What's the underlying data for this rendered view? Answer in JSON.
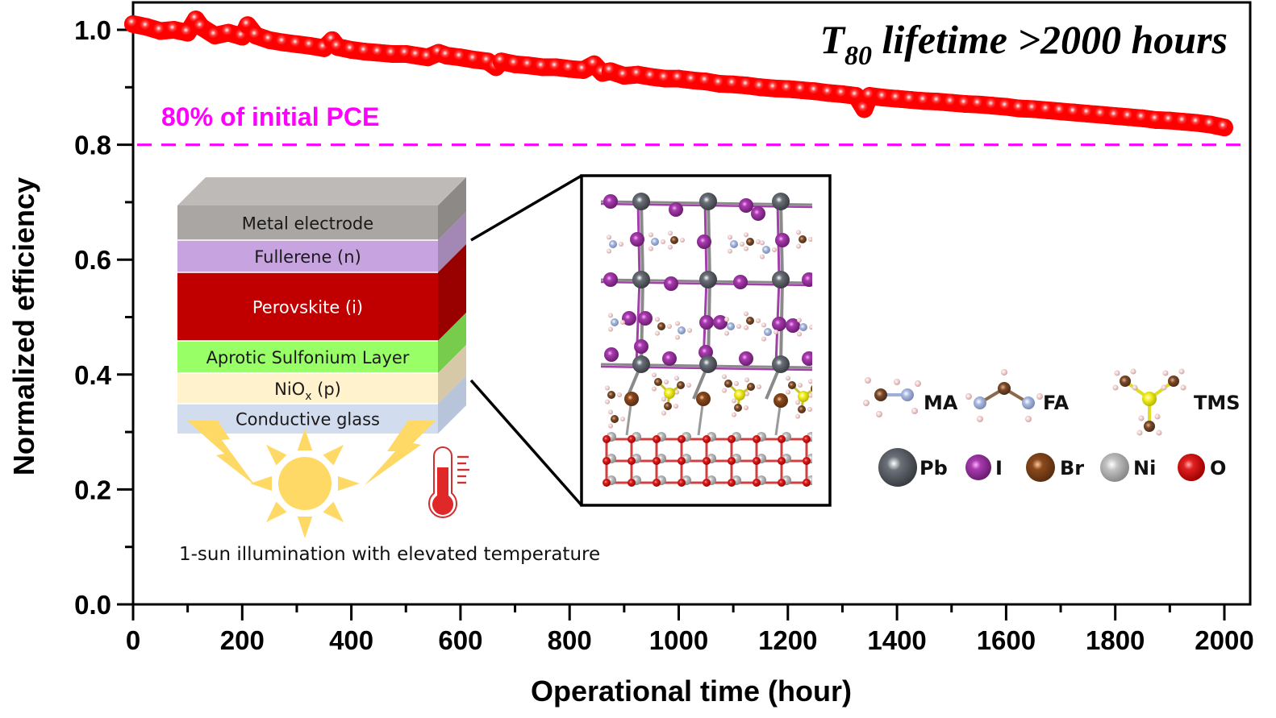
{
  "chart_data": {
    "type": "scatter",
    "title": "",
    "xlabel": "Operational time (hour)",
    "ylabel": "Normalized efficiency",
    "xlim": [
      0,
      2000
    ],
    "ylim": [
      0.0,
      1.0
    ],
    "x_ticks": [
      "0",
      "200",
      "400",
      "600",
      "800",
      "1000",
      "1200",
      "1400",
      "1600",
      "1800",
      "2000"
    ],
    "x_tick_values": [
      0,
      200,
      400,
      600,
      800,
      1000,
      1200,
      1400,
      1600,
      1800,
      2000
    ],
    "y_ticks": [
      "0.0",
      "0.2",
      "0.4",
      "0.6",
      "0.8",
      "1.0"
    ],
    "y_tick_values": [
      0.0,
      0.2,
      0.4,
      0.6,
      0.8,
      1.0
    ],
    "grid": false,
    "series": [
      {
        "name": "Normalized efficiency",
        "color": "#ff0000",
        "x": [
          0,
          25,
          50,
          75,
          100,
          115,
          125,
          150,
          175,
          200,
          210,
          225,
          250,
          275,
          300,
          325,
          350,
          365,
          375,
          400,
          425,
          450,
          475,
          500,
          520,
          540,
          560,
          575,
          600,
          625,
          650,
          665,
          675,
          700,
          725,
          750,
          775,
          800,
          825,
          845,
          860,
          875,
          900,
          925,
          950,
          975,
          1000,
          1025,
          1050,
          1075,
          1100,
          1125,
          1150,
          1175,
          1200,
          1225,
          1250,
          1275,
          1300,
          1325,
          1340,
          1350,
          1375,
          1400,
          1425,
          1450,
          1475,
          1500,
          1525,
          1550,
          1575,
          1600,
          1625,
          1650,
          1675,
          1700,
          1725,
          1750,
          1775,
          1800,
          1825,
          1850,
          1875,
          1900,
          1925,
          1950,
          1975,
          2000
        ],
        "y": [
          1.01,
          1.005,
          0.998,
          1.0,
          0.995,
          1.018,
          1.005,
          0.99,
          0.995,
          0.988,
          1.008,
          0.99,
          0.982,
          0.978,
          0.975,
          0.972,
          0.968,
          0.982,
          0.97,
          0.965,
          0.962,
          0.96,
          0.958,
          0.958,
          0.955,
          0.952,
          0.96,
          0.955,
          0.952,
          0.948,
          0.945,
          0.935,
          0.945,
          0.94,
          0.938,
          0.935,
          0.935,
          0.932,
          0.93,
          0.94,
          0.925,
          0.928,
          0.92,
          0.922,
          0.918,
          0.915,
          0.915,
          0.912,
          0.91,
          0.906,
          0.905,
          0.903,
          0.9,
          0.898,
          0.897,
          0.895,
          0.893,
          0.89,
          0.888,
          0.885,
          0.862,
          0.885,
          0.882,
          0.88,
          0.878,
          0.876,
          0.875,
          0.873,
          0.871,
          0.87,
          0.868,
          0.866,
          0.863,
          0.862,
          0.86,
          0.858,
          0.856,
          0.854,
          0.852,
          0.85,
          0.848,
          0.846,
          0.843,
          0.842,
          0.84,
          0.838,
          0.835,
          0.83
        ]
      }
    ],
    "reference_line": {
      "y": 0.8,
      "style": "dashed",
      "color": "#ff00ff",
      "label": "80% of initial PCE"
    },
    "annotations": {
      "t80_prefix": "T",
      "t80_subscript": "80",
      "t80_suffix": " lifetime >2000 hours"
    }
  },
  "inset": {
    "device_layers": [
      {
        "label": "Metal electrode",
        "front": "#a9a6a4",
        "side": "#8c8987",
        "text_color": "#1a1a1a"
      },
      {
        "label": "Fullerene (n)",
        "front": "#c7a3e0",
        "side": "#a387b5",
        "text_color": "#1a1a1a"
      },
      {
        "label": "Perovskite (i)",
        "front": "#c00000",
        "side": "#990000",
        "text_color": "#ffffff"
      },
      {
        "label": "Aprotic Sulfonium Layer",
        "front": "#99ff66",
        "side": "#77cc4d",
        "text_color": "#1a1a1a"
      },
      {
        "label_main": "NiO",
        "label_sub": "x",
        "label_rest": " (p)",
        "front": "#fff2cc",
        "side": "#d6c9a8",
        "text_color": "#1a1a1a"
      },
      {
        "label": "Conductive glass",
        "front": "#d1dcef",
        "side": "#b8c4d9",
        "text_color": "#1a1a1a"
      }
    ],
    "condition_label": "1-sun illumination with elevated temperature",
    "molecule_legend": [
      "MA",
      "FA",
      "TMS"
    ],
    "atom_legend": [
      {
        "label": "Pb",
        "color": "#555a61"
      },
      {
        "label": "I",
        "color": "#9b2fa0"
      },
      {
        "label": "Br",
        "color": "#8a4a1c"
      },
      {
        "label": "Ni",
        "color": "#b5b5b5"
      },
      {
        "label": "O",
        "color": "#e02020"
      }
    ],
    "atom_colors": {
      "C": "#7a4a2a",
      "N": "#9fb0d8",
      "H": "#f2c6c6",
      "S": "#f0ee20"
    }
  }
}
